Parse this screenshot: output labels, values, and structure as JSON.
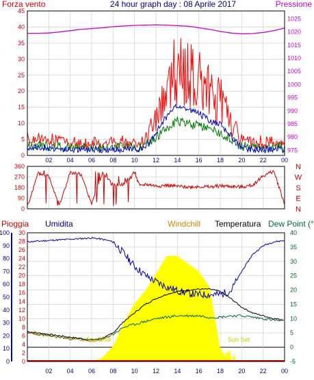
{
  "colors": {
    "background": "#ffffff",
    "frame": "#000000",
    "grid": "#c8c8c8",
    "wind": "#ff0000",
    "wind_avg": "#0000cc",
    "wind_green": "#007700",
    "pressure": "#cc00cc",
    "direction": "#cc0000",
    "humidity": "#0000aa",
    "rain": "#cc0000",
    "windchill": "#cc8800",
    "temperature": "#000000",
    "dewpoint": "#006633",
    "solar": "#ffff00",
    "sun_label": "#cccc00"
  },
  "header": {
    "left_label": "Forza vento",
    "title": "24 hour graph day : 08 Aprile 2017",
    "right_label": "Pressione"
  },
  "bottom_legend": {
    "rain": "Pioggia",
    "humidity": "Umidita",
    "windchill": "Windchill",
    "temperature": "Temperatura",
    "dewpoint": "Dew Point (°C"
  },
  "sun_labels": {
    "sunrise": "Sun Rise",
    "sunset": "Sun Set"
  },
  "chart_data": [
    {
      "id": "wind_pressure",
      "type": "line",
      "x_ticks": [
        "02",
        "04",
        "06",
        "08",
        "10",
        "12",
        "14",
        "16",
        "18",
        "20",
        "22",
        "00"
      ],
      "y_left_ticks": [
        "0",
        "5",
        "10",
        "15",
        "20",
        "25",
        "30",
        "35",
        "40",
        "45"
      ],
      "y_left_range": [
        0,
        45
      ],
      "y_right_ticks": [
        "975",
        "980",
        "985",
        "990",
        "995",
        "1000",
        "1005",
        "1010",
        "1015",
        "1020",
        "1025"
      ],
      "y_right_range": [
        973,
        1028
      ],
      "series": [
        {
          "name": "Forza vento",
          "axis": "left",
          "hours": [
            0,
            2,
            4,
            6,
            8,
            10,
            11,
            12,
            13,
            14,
            15,
            16,
            17,
            18,
            19,
            20,
            21,
            22,
            23,
            24
          ],
          "values": [
            4,
            4,
            3,
            3,
            3,
            3,
            4,
            12,
            20,
            26,
            24,
            22,
            18,
            16,
            10,
            4,
            3,
            3,
            3,
            3
          ]
        },
        {
          "name": "Pressione",
          "axis": "right",
          "hours": [
            0,
            1,
            2,
            3,
            4,
            5,
            6,
            7,
            8,
            9,
            10,
            11,
            12,
            13,
            14,
            15,
            16,
            17,
            18,
            19,
            20,
            21,
            22,
            23,
            24
          ],
          "values": [
            1019.5,
            1019.5,
            1019.6,
            1020,
            1020.5,
            1021,
            1021.3,
            1021.6,
            1022,
            1022.3,
            1022.5,
            1022.6,
            1022.7,
            1022.6,
            1022.4,
            1022.2,
            1021.6,
            1021,
            1020.2,
            1019.6,
            1019.3,
            1019.4,
            1019.8,
            1020.5,
            1021.5
          ]
        }
      ]
    },
    {
      "id": "wind_direction",
      "type": "line",
      "y_ticks": [
        "0",
        "90",
        "180",
        "270",
        "360"
      ],
      "y_range": [
        0,
        360
      ],
      "right_labels": [
        "N",
        "W",
        "S",
        "E",
        "N"
      ],
      "series": [
        {
          "name": "direction",
          "hours": [
            0,
            1,
            2,
            3,
            4,
            5,
            6,
            7,
            8,
            9,
            10,
            10.5,
            11,
            12,
            13,
            14,
            15,
            16,
            17,
            18,
            19,
            20,
            21,
            22,
            23,
            24
          ],
          "values": [
            20,
            300,
            280,
            30,
            310,
            290,
            40,
            300,
            200,
            210,
            300,
            190,
            210,
            195,
            200,
            190,
            185,
            190,
            185,
            195,
            190,
            185,
            200,
            280,
            320,
            40
          ]
        }
      ]
    },
    {
      "id": "temp_humidity",
      "type": "line",
      "x_ticks": [
        "02",
        "04",
        "06",
        "08",
        "10",
        "12",
        "14",
        "16",
        "18",
        "20",
        "22",
        "00"
      ],
      "y_hum_ticks": [
        "0",
        "10",
        "20",
        "30",
        "40",
        "50",
        "60",
        "70",
        "80",
        "90",
        "100"
      ],
      "y_hum_range": [
        0,
        100
      ],
      "y_rain_ticks": [
        "0",
        "2",
        "4",
        "6",
        "8",
        "10",
        "12",
        "14",
        "16",
        "18",
        "20",
        "22",
        "24",
        "26",
        "28",
        "30"
      ],
      "y_rain_range": [
        0,
        30
      ],
      "y_temp_ticks": [
        "-5",
        "0",
        "5",
        "10",
        "15",
        "20",
        "25",
        "30",
        "35",
        "40"
      ],
      "y_temp_range": [
        -5,
        40
      ],
      "series": [
        {
          "name": "Umidita",
          "hours": [
            0,
            2,
            4,
            6,
            7,
            8,
            9,
            10,
            11,
            12,
            13,
            14,
            15,
            16,
            17,
            18,
            19,
            20,
            21,
            22,
            23,
            24
          ],
          "values": [
            93,
            94,
            95,
            96,
            95,
            93,
            84,
            74,
            67,
            62,
            58,
            55,
            53,
            52,
            52,
            52,
            55,
            70,
            83,
            90,
            93,
            94
          ]
        },
        {
          "name": "Temperatura",
          "hours": [
            0,
            1,
            2,
            3,
            4,
            5,
            6,
            7,
            8,
            9,
            10,
            11,
            12,
            13,
            14,
            15,
            16,
            17,
            18,
            19,
            20,
            21,
            22,
            23,
            24
          ],
          "values": [
            5.5,
            5,
            4.5,
            4,
            3.5,
            3,
            2.5,
            3,
            5,
            9,
            12,
            15,
            17,
            18.5,
            19.5,
            20,
            20.3,
            20.3,
            19.5,
            17,
            14,
            12,
            11,
            10,
            9.5
          ]
        },
        {
          "name": "Windchill",
          "hours": [
            0,
            2,
            4,
            6,
            7,
            8
          ],
          "values": [
            5,
            4,
            3,
            2,
            2.5,
            4.5
          ]
        },
        {
          "name": "Dew Point",
          "hours": [
            0,
            1,
            2,
            3,
            4,
            5,
            6,
            7,
            8,
            9,
            10,
            11,
            12,
            13,
            14,
            15,
            16,
            17,
            18,
            19,
            20,
            21,
            22,
            23,
            24
          ],
          "values": [
            5,
            4.5,
            4,
            3.5,
            3,
            3,
            2.5,
            3,
            4.5,
            7,
            8,
            9,
            10,
            10.5,
            11,
            11,
            11,
            10.5,
            10.5,
            11,
            11,
            10.5,
            10,
            9.5,
            9
          ]
        },
        {
          "name": "Solar",
          "hours": [
            6,
            7,
            8,
            9,
            10,
            11,
            12,
            13,
            14,
            15,
            16,
            17,
            17.8,
            18,
            19,
            20
          ],
          "values": [
            0,
            3,
            12,
            30,
            45,
            55,
            68,
            82,
            82,
            76,
            70,
            58,
            20,
            6,
            0,
            0
          ]
        },
        {
          "name": "Pioggia",
          "hours": [
            0,
            24
          ],
          "values": [
            0,
            0
          ]
        }
      ]
    }
  ]
}
